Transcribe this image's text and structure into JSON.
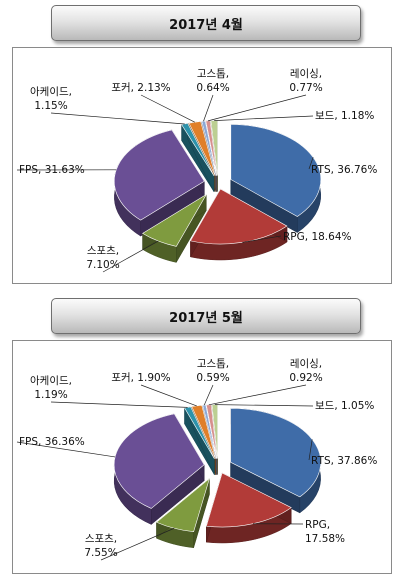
{
  "chart_data": [
    {
      "type": "pie",
      "title": "2017년 4월",
      "slices": [
        {
          "label": "RTS",
          "value": 36.76,
          "label_text": "RTS, 36.76%",
          "color": "#3f6ca8"
        },
        {
          "label": "RPG",
          "value": 18.64,
          "label_text": "RPG, 18.64%",
          "color": "#b23b38"
        },
        {
          "label": "스포츠",
          "value": 7.1,
          "label_text": "스포츠,|7.10%",
          "color": "#7f9b3f"
        },
        {
          "label": "FPS",
          "value": 31.63,
          "label_text": "FPS, 31.63%",
          "color": "#6a4f95"
        },
        {
          "label": "아케이드",
          "value": 1.15,
          "label_text": "아케이드,|1.15%",
          "color": "#2d93ab"
        },
        {
          "label": "포커",
          "value": 2.13,
          "label_text": "포커, 2.13%",
          "color": "#e07f29"
        },
        {
          "label": "고스톱",
          "value": 0.64,
          "label_text": "고스톱,|0.64%",
          "color": "#8ba8d6"
        },
        {
          "label": "레이싱",
          "value": 0.77,
          "label_text": "레이싱,|0.77%",
          "color": "#d78f8d"
        },
        {
          "label": "보드",
          "value": 1.18,
          "label_text": "보드, 1.18%",
          "color": "#bccf92"
        }
      ]
    },
    {
      "type": "pie",
      "title": "2017년 5월",
      "slices": [
        {
          "label": "RTS",
          "value": 37.86,
          "label_text": "RTS, 37.86%",
          "color": "#3f6ca8"
        },
        {
          "label": "RPG",
          "value": 17.58,
          "label_text": "RPG,|17.58%",
          "color": "#b23b38"
        },
        {
          "label": "스포츠",
          "value": 7.55,
          "label_text": "스포츠,|7.55%",
          "color": "#7f9b3f"
        },
        {
          "label": "FPS",
          "value": 36.36,
          "label_text": "FPS, 36.36%",
          "color": "#6a4f95"
        },
        {
          "label": "아케이드",
          "value": 1.19,
          "label_text": "아케이드,|1.19%",
          "color": "#2d93ab"
        },
        {
          "label": "포커",
          "value": 1.9,
          "label_text": "포커, 1.90%",
          "color": "#e07f29"
        },
        {
          "label": "고스톱",
          "value": 0.59,
          "label_text": "고스톱,|0.59%",
          "color": "#8ba8d6"
        },
        {
          "label": "레이싱",
          "value": 0.92,
          "label_text": "레이싱,|0.92%",
          "color": "#d78f8d"
        },
        {
          "label": "보드",
          "value": 1.05,
          "label_text": "보드, 1.05%",
          "color": "#bccf92"
        }
      ]
    }
  ]
}
